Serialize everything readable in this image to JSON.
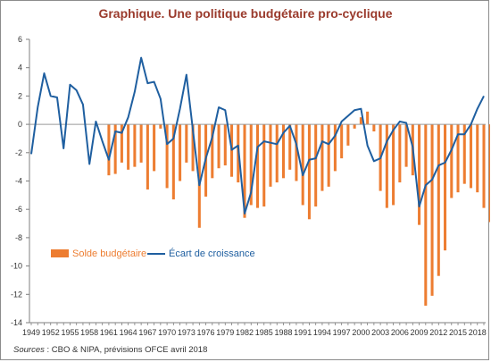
{
  "chart_data": {
    "type": "bar+line",
    "title": "Graphique. Une politique budgétaire pro-cyclique",
    "xlabel": "",
    "ylabel": "",
    "ylim": [
      -14,
      6
    ],
    "yticks": [
      6,
      4,
      2,
      0,
      -2,
      -4,
      -6,
      -8,
      -10,
      -12,
      -14
    ],
    "x_tick_labels": [
      "1949",
      "1952",
      "1955",
      "1958",
      "1961",
      "1964",
      "1967",
      "1970",
      "1973",
      "1976",
      "1979",
      "1982",
      "1985",
      "1988",
      "1991",
      "1994",
      "1997",
      "2000",
      "2003",
      "2006",
      "2009",
      "2012",
      "2015",
      "2018"
    ],
    "years": [
      1949,
      1950,
      1951,
      1952,
      1953,
      1954,
      1955,
      1956,
      1957,
      1958,
      1959,
      1960,
      1961,
      1962,
      1963,
      1964,
      1965,
      1966,
      1967,
      1968,
      1969,
      1970,
      1971,
      1972,
      1973,
      1974,
      1975,
      1976,
      1977,
      1978,
      1979,
      1980,
      1981,
      1982,
      1983,
      1984,
      1985,
      1986,
      1987,
      1988,
      1989,
      1990,
      1991,
      1992,
      1993,
      1994,
      1995,
      1996,
      1997,
      1998,
      1999,
      2000,
      2001,
      2002,
      2003,
      2004,
      2005,
      2006,
      2007,
      2008,
      2009,
      2010,
      2011,
      2012,
      2013,
      2014,
      2015,
      2016,
      2017,
      2018,
      2019
    ],
    "series": [
      {
        "name": "Solde budgétaire",
        "kind": "bar",
        "color": "#ed7d31",
        "start_year": 1961,
        "values": [
          -3.6,
          -3.5,
          -2.7,
          -3.2,
          -3.0,
          -2.7,
          -4.6,
          -3.3,
          -0.3,
          -4.5,
          -5.3,
          -4.0,
          -2.7,
          -3.3,
          -7.3,
          -5.1,
          -3.8,
          -3.1,
          -2.9,
          -3.7,
          -4.1,
          -6.6,
          -5.7,
          -5.9,
          -5.8,
          -4.4,
          -4.1,
          -3.8,
          -3.2,
          -4.0,
          -5.7,
          -6.7,
          -5.8,
          -4.7,
          -4.4,
          -3.3,
          -2.4,
          -1.5,
          -0.3,
          0.5,
          0.9,
          -0.5,
          -4.7,
          -5.9,
          -5.7,
          -4.1,
          -3.0,
          -3.6,
          -7.1,
          -12.8,
          -12.1,
          -10.7,
          -8.9,
          -5.2,
          -4.8,
          -4.2,
          -4.5,
          -4.8,
          -5.9,
          -6.9
        ]
      },
      {
        "name": "Écart de croissance",
        "kind": "line",
        "color": "#1f5fa0",
        "start_year": 1949,
        "values": [
          -2.1,
          1.2,
          3.6,
          2.0,
          1.9,
          -1.7,
          2.8,
          2.4,
          1.4,
          -2.8,
          0.2,
          -1.2,
          -2.5,
          -0.5,
          -0.6,
          0.5,
          2.3,
          4.7,
          2.9,
          3.0,
          1.8,
          -1.4,
          -1.0,
          1.1,
          3.5,
          -0.4,
          -4.3,
          -2.4,
          -0.9,
          1.2,
          1.0,
          -1.8,
          -1.5,
          -6.3,
          -4.8,
          -1.6,
          -1.2,
          -1.3,
          -1.4,
          -0.6,
          -0.1,
          -1.4,
          -3.6,
          -2.5,
          -2.4,
          -1.2,
          -1.4,
          -0.8,
          0.2,
          0.6,
          1.0,
          1.1,
          -1.5,
          -2.6,
          -2.4,
          -1.2,
          -0.4,
          0.2,
          0.1,
          -1.6,
          -5.8,
          -4.3,
          -3.9,
          -2.9,
          -2.7,
          -1.8,
          -0.7,
          -0.7,
          0.0,
          1.1,
          2.0
        ]
      }
    ],
    "legend": "bottom-left"
  },
  "source": {
    "label": "Sources",
    "text": " : CBO & NIPA, prévisions OFCE avril 2018"
  },
  "colors": {
    "title": "#9a3a2c",
    "bar": "#ed7d31",
    "line": "#1f5fa0",
    "axis": "#7f7f7f"
  }
}
